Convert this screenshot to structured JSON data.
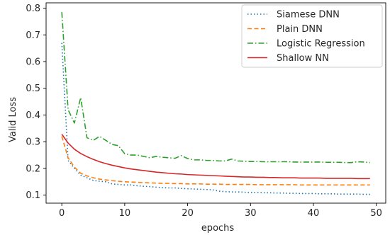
{
  "chart_data": {
    "type": "line",
    "xlabel": "epochs",
    "ylabel": "Valid Loss",
    "xlim": [
      -2.5,
      51.5
    ],
    "ylim": [
      0.07,
      0.82
    ],
    "x_ticks": [
      0,
      10,
      20,
      30,
      40,
      50
    ],
    "y_ticks": [
      0.1,
      0.2,
      0.3,
      0.4,
      0.5,
      0.6,
      0.7,
      0.8
    ],
    "x_tick_labels": [
      "0",
      "10",
      "20",
      "30",
      "40",
      "50"
    ],
    "y_tick_labels": [
      "0.1",
      "0.2",
      "0.3",
      "0.4",
      "0.5",
      "0.6",
      "0.7",
      "0.8"
    ],
    "grid": false,
    "legend_position": "top-right",
    "x": [
      0,
      1,
      2,
      3,
      4,
      5,
      6,
      7,
      8,
      9,
      10,
      11,
      12,
      13,
      14,
      15,
      16,
      17,
      18,
      19,
      20,
      21,
      22,
      23,
      24,
      25,
      26,
      27,
      28,
      29,
      30,
      31,
      32,
      33,
      34,
      35,
      36,
      37,
      38,
      39,
      40,
      41,
      42,
      43,
      44,
      45,
      46,
      47,
      48,
      49
    ],
    "series": [
      {
        "name": "Siamese DNN",
        "color": "#1f77b4",
        "dash": "dotted",
        "values": [
          0.67,
          0.23,
          0.2,
          0.175,
          0.165,
          0.155,
          0.152,
          0.15,
          0.142,
          0.14,
          0.138,
          0.138,
          0.135,
          0.133,
          0.132,
          0.13,
          0.128,
          0.127,
          0.127,
          0.125,
          0.124,
          0.123,
          0.122,
          0.121,
          0.12,
          0.115,
          0.113,
          0.112,
          0.112,
          0.111,
          0.11,
          0.11,
          0.109,
          0.109,
          0.108,
          0.108,
          0.107,
          0.107,
          0.106,
          0.106,
          0.106,
          0.105,
          0.105,
          0.105,
          0.104,
          0.104,
          0.104,
          0.104,
          0.103,
          0.103
        ]
      },
      {
        "name": "Plain DNN",
        "color": "#ff7f0e",
        "dash": "dashed",
        "values": [
          0.32,
          0.24,
          0.205,
          0.182,
          0.172,
          0.165,
          0.16,
          0.157,
          0.154,
          0.152,
          0.15,
          0.149,
          0.148,
          0.147,
          0.146,
          0.145,
          0.144,
          0.144,
          0.143,
          0.143,
          0.142,
          0.142,
          0.142,
          0.141,
          0.141,
          0.141,
          0.14,
          0.14,
          0.14,
          0.14,
          0.14,
          0.139,
          0.139,
          0.139,
          0.139,
          0.139,
          0.139,
          0.139,
          0.138,
          0.138,
          0.138,
          0.138,
          0.138,
          0.138,
          0.138,
          0.138,
          0.138,
          0.138,
          0.138,
          0.138
        ]
      },
      {
        "name": "Logistic Regression",
        "color": "#2ca02c",
        "dash": "dashdot",
        "values": [
          0.785,
          0.42,
          0.37,
          0.465,
          0.315,
          0.305,
          0.32,
          0.305,
          0.29,
          0.285,
          0.255,
          0.25,
          0.25,
          0.245,
          0.24,
          0.245,
          0.242,
          0.24,
          0.238,
          0.248,
          0.237,
          0.232,
          0.232,
          0.23,
          0.23,
          0.228,
          0.228,
          0.235,
          0.228,
          0.227,
          0.226,
          0.226,
          0.225,
          0.225,
          0.225,
          0.225,
          0.225,
          0.224,
          0.224,
          0.224,
          0.224,
          0.224,
          0.223,
          0.223,
          0.223,
          0.222,
          0.222,
          0.225,
          0.224,
          0.222
        ]
      },
      {
        "name": "Shallow NN",
        "color": "#d62728",
        "dash": "solid",
        "values": [
          0.328,
          0.295,
          0.272,
          0.256,
          0.244,
          0.234,
          0.225,
          0.218,
          0.212,
          0.207,
          0.202,
          0.198,
          0.195,
          0.192,
          0.189,
          0.186,
          0.184,
          0.182,
          0.18,
          0.179,
          0.177,
          0.176,
          0.175,
          0.174,
          0.173,
          0.172,
          0.171,
          0.17,
          0.169,
          0.168,
          0.168,
          0.167,
          0.167,
          0.166,
          0.166,
          0.165,
          0.165,
          0.165,
          0.164,
          0.164,
          0.164,
          0.164,
          0.163,
          0.163,
          0.163,
          0.163,
          0.163,
          0.162,
          0.162,
          0.162
        ]
      }
    ]
  }
}
